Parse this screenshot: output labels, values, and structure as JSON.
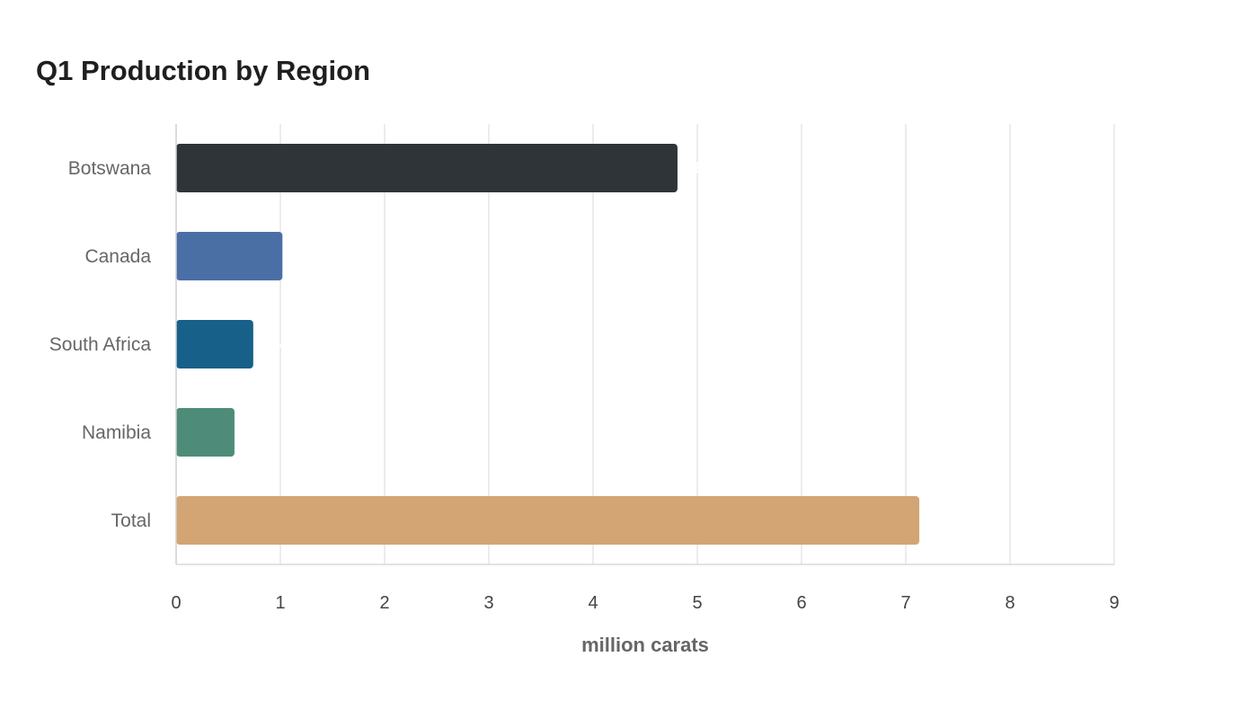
{
  "chart_data": {
    "type": "bar",
    "orientation": "horizontal",
    "title": "Q1 Production by Region",
    "xlabel": "million carats",
    "ylabel": "",
    "categories": [
      "Botswana",
      "Canada",
      "South Africa",
      "Namibia",
      "Total"
    ],
    "values": [
      4.81,
      1.02,
      0.74,
      0.56,
      7.13
    ],
    "colors": [
      "#2e3437",
      "#4a6fa5",
      "#16608a",
      "#4e8c79",
      "#d3a574"
    ],
    "xlim": [
      0,
      9
    ],
    "xticks": [
      0,
      1,
      2,
      3,
      4,
      5,
      6,
      7,
      8,
      9
    ],
    "grid": true,
    "legend": "none"
  }
}
